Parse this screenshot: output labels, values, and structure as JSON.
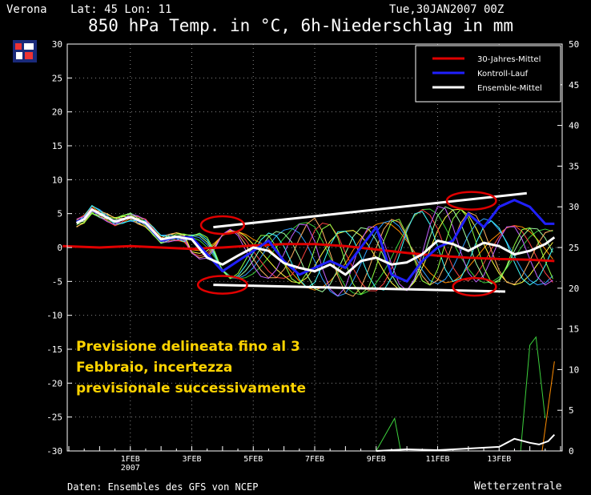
{
  "header": {
    "location": "Verona",
    "coords": "Lat: 45 Lon: 11",
    "run": "Tue,30JAN2007 00Z",
    "title": "850 hPa Temp. in °C, 6h-Niederschlag in mm"
  },
  "annotation": "Previsione delineata fino al 3 Febbraio, incertezza previsionale successivamente",
  "footer": {
    "source": "Daten: Ensembles des GFS von NCEP",
    "brand": "Wetterzentrale"
  },
  "colors": {
    "background": "#000000",
    "climate": "#e00000",
    "control": "#2020ff",
    "ensemble_mean": "#ffffff",
    "annotation": "#ffd400",
    "markup": "#e00000"
  },
  "chart_data": {
    "type": "line",
    "xlabel": "",
    "ylabel": "",
    "y_left_lim": [
      -30,
      30
    ],
    "y_left_ticks": [
      30,
      25,
      20,
      15,
      10,
      5,
      0,
      -5,
      -10,
      -15,
      -20,
      -25,
      -30
    ],
    "y_right_lim": [
      0,
      50
    ],
    "y_right_ticks": [
      50,
      45,
      40,
      35,
      30,
      25,
      20,
      15,
      10,
      5,
      0
    ],
    "x_range_days": [
      0,
      16
    ],
    "x_ticks": [
      {
        "day": 2,
        "label": "1FEB",
        "sub": "2007"
      },
      {
        "day": 4,
        "label": "3FEB"
      },
      {
        "day": 6,
        "label": "5FEB"
      },
      {
        "day": 8,
        "label": "7FEB"
      },
      {
        "day": 10,
        "label": "9FEB"
      },
      {
        "day": 12,
        "label": "11FEB"
      },
      {
        "day": 14,
        "label": "13FEB"
      }
    ],
    "grid": true,
    "legend_position": "top-right",
    "legend": [
      {
        "name": "30-Jahres-Mittel",
        "color": "#e00000"
      },
      {
        "name": "Kontroll-Lauf",
        "color": "#2020ff"
      },
      {
        "name": "Ensemble-Mittel",
        "color": "#ffffff"
      }
    ],
    "series": [
      {
        "name": "30-Jahres-Mittel",
        "color": "#e00000",
        "width": 3,
        "x": [
          -0.2,
          1,
          2,
          3,
          4,
          5,
          6,
          7,
          8,
          9,
          10,
          11,
          12,
          13,
          14,
          15,
          15.8
        ],
        "y": [
          0.2,
          0,
          0.2,
          0,
          -0.2,
          0,
          0.3,
          0.5,
          0.5,
          0.2,
          -0.3,
          -0.8,
          -1.2,
          -1.5,
          -1.7,
          -1.8,
          -2
        ]
      },
      {
        "name": "Kontroll-Lauf",
        "color": "#2020ff",
        "width": 3,
        "x": [
          0.25,
          0.5,
          0.75,
          1,
          1.5,
          2,
          2.5,
          3,
          3.5,
          4,
          4.5,
          5,
          5.5,
          6,
          6.5,
          7,
          7.5,
          8,
          8.5,
          9,
          9.5,
          10,
          10.5,
          11,
          11.5,
          12,
          12.5,
          13,
          13.5,
          14,
          14.5,
          15,
          15.5,
          15.8
        ],
        "y": [
          3.8,
          4.2,
          5.5,
          5,
          3.8,
          4.5,
          3.5,
          1,
          1.5,
          1.5,
          -1,
          -3.5,
          -2,
          -0.5,
          1,
          -2,
          -4,
          -3,
          -2,
          -3,
          0,
          3,
          -4,
          -5,
          -2,
          0,
          1,
          5,
          3,
          6,
          7,
          6,
          3.5,
          3.5
        ]
      },
      {
        "name": "Ensemble-Mittel",
        "color": "#ffffff",
        "width": 3,
        "x": [
          0.25,
          0.5,
          0.75,
          1,
          1.5,
          2,
          2.5,
          3,
          3.5,
          4,
          4.5,
          5,
          5.5,
          6,
          6.5,
          7,
          7.5,
          8,
          8.5,
          9,
          9.5,
          10,
          10.5,
          11,
          11.5,
          12,
          12.5,
          13,
          13.5,
          14,
          14.5,
          15,
          15.5,
          15.8
        ],
        "y": [
          3.6,
          4.2,
          5.6,
          5,
          3.8,
          4.5,
          3.6,
          1.2,
          1.6,
          1.2,
          -1.5,
          -2.5,
          -1.2,
          0,
          -0.5,
          -2.3,
          -3,
          -3.5,
          -2.5,
          -4,
          -2,
          -1.5,
          -2.5,
          -2.2,
          -1,
          1,
          0.5,
          -0.5,
          0.7,
          0.2,
          -1,
          -0.5,
          0.5,
          1.5
        ]
      },
      {
        "name": "Ensemble-Mittel (Niederschlag)",
        "color": "#ffffff",
        "width": 2,
        "axis": "right",
        "x": [
          10,
          11,
          12,
          13,
          14,
          14.5,
          15,
          15.3,
          15.6,
          15.8
        ],
        "y": [
          0,
          0.2,
          0.1,
          0.3,
          0.5,
          1.5,
          1,
          0.8,
          1.2,
          2
        ]
      }
    ],
    "spread_band": {
      "upper": [
        [
          4,
          2
        ],
        [
          5,
          3.5
        ],
        [
          6,
          2
        ],
        [
          7,
          3
        ],
        [
          8,
          5
        ],
        [
          9,
          3
        ],
        [
          10,
          4
        ],
        [
          11,
          5.5
        ],
        [
          12,
          7
        ],
        [
          13,
          6
        ],
        [
          14,
          4
        ],
        [
          15,
          3.5
        ],
        [
          15.8,
          3
        ]
      ],
      "lower": [
        [
          4,
          -1
        ],
        [
          5,
          -5
        ],
        [
          6,
          -5
        ],
        [
          7,
          -5
        ],
        [
          8,
          -7
        ],
        [
          9,
          -8
        ],
        [
          10,
          -7
        ],
        [
          11,
          -7
        ],
        [
          12,
          -6
        ],
        [
          13,
          -5.5
        ],
        [
          14,
          -6
        ],
        [
          15,
          -6
        ],
        [
          15.8,
          -6
        ]
      ]
    },
    "precipitation_spike": {
      "x": [
        14.7,
        15,
        15.2,
        15.5
      ],
      "y": [
        0,
        13,
        14,
        4
      ]
    },
    "markup_lines": [
      {
        "x": [
          4.7,
          14.9
        ],
        "y": [
          3,
          8
        ]
      },
      {
        "x": [
          4.7,
          14.2
        ],
        "y": [
          -5.5,
          -6.5
        ]
      }
    ],
    "markup_ellipses": [
      {
        "cx": 5,
        "cy": 3.3,
        "rx": 0.7,
        "ry": 1.3
      },
      {
        "cx": 5,
        "cy": -5.5,
        "rx": 0.8,
        "ry": 1.3
      },
      {
        "cx": 13.1,
        "cy": 6.9,
        "rx": 0.8,
        "ry": 1.3
      },
      {
        "cx": 13.2,
        "cy": -5.8,
        "rx": 0.7,
        "ry": 1.3
      }
    ]
  }
}
